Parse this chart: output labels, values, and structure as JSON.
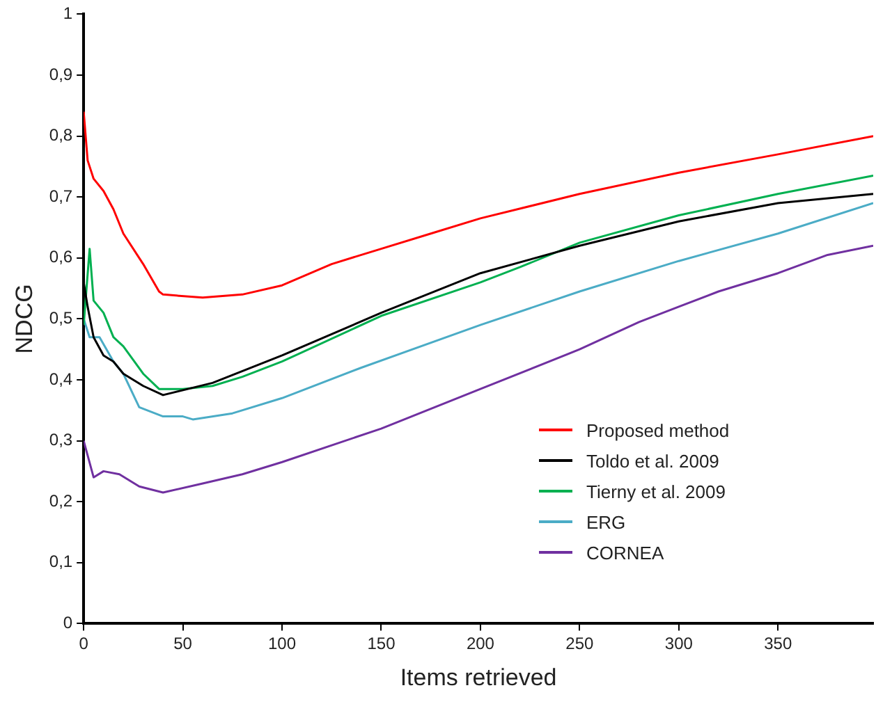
{
  "chart_data": {
    "type": "line",
    "xlabel": "Items retrieved",
    "ylabel": "NDCG",
    "xlim": [
      0,
      398
    ],
    "xticks": [
      0,
      50,
      100,
      150,
      200,
      250,
      300,
      350
    ],
    "ylim": [
      0,
      1
    ],
    "yticks": [
      0,
      {
        "value": 0.1,
        "label": "0,1"
      },
      {
        "value": 0.2,
        "label": "0,2"
      },
      {
        "value": 0.3,
        "label": "0,3"
      },
      {
        "value": 0.4,
        "label": "0,4"
      },
      {
        "value": 0.5,
        "label": "0,5"
      },
      {
        "value": 0.6,
        "label": "0,6"
      },
      {
        "value": 0.7,
        "label": "0,7"
      },
      {
        "value": 0.8,
        "label": "0,8"
      },
      {
        "value": 0.9,
        "label": "0,9"
      },
      1
    ],
    "grid": false,
    "legend": "bottom right",
    "marker": "none",
    "line_style": "solid",
    "series": [
      {
        "name": "Proposed method",
        "color": "#ff0000",
        "x": [
          0,
          2,
          5,
          10,
          15,
          20,
          30,
          38,
          40,
          60,
          80,
          100,
          125,
          150,
          175,
          200,
          250,
          300,
          350,
          398
        ],
        "values": [
          0.84,
          0.76,
          0.73,
          0.71,
          0.68,
          0.64,
          0.59,
          0.545,
          0.54,
          0.535,
          0.54,
          0.555,
          0.59,
          0.615,
          0.64,
          0.665,
          0.705,
          0.74,
          0.77,
          0.8
        ]
      },
      {
        "name": "Toldo et al. 2009",
        "color": "#000000",
        "x": [
          0,
          2,
          5,
          10,
          15,
          20,
          30,
          40,
          65,
          100,
          150,
          200,
          250,
          300,
          350,
          398
        ],
        "values": [
          0.56,
          0.52,
          0.47,
          0.44,
          0.43,
          0.41,
          0.39,
          0.375,
          0.395,
          0.44,
          0.51,
          0.575,
          0.62,
          0.66,
          0.69,
          0.705
        ]
      },
      {
        "name": "Tierny et al. 2009",
        "color": "#00b050",
        "x": [
          0,
          3,
          5,
          10,
          15,
          20,
          30,
          38,
          50,
          65,
          80,
          100,
          150,
          200,
          220,
          250,
          300,
          350,
          398
        ],
        "values": [
          0.49,
          0.615,
          0.53,
          0.51,
          0.47,
          0.455,
          0.41,
          0.385,
          0.385,
          0.39,
          0.405,
          0.43,
          0.505,
          0.56,
          0.585,
          0.625,
          0.67,
          0.705,
          0.735
        ]
      },
      {
        "name": "ERG",
        "color": "#4bacc6",
        "x": [
          0,
          3,
          8,
          15,
          20,
          28,
          40,
          50,
          55,
          75,
          100,
          140,
          200,
          250,
          300,
          350,
          398
        ],
        "values": [
          0.5,
          0.47,
          0.47,
          0.43,
          0.41,
          0.355,
          0.34,
          0.34,
          0.335,
          0.345,
          0.37,
          0.42,
          0.49,
          0.545,
          0.595,
          0.64,
          0.69
        ]
      },
      {
        "name": "CORNEA",
        "color": "#7030a0",
        "x": [
          0,
          5,
          10,
          18,
          28,
          40,
          60,
          80,
          100,
          150,
          200,
          250,
          280,
          300,
          320,
          350,
          375,
          398
        ],
        "values": [
          0.3,
          0.24,
          0.25,
          0.245,
          0.225,
          0.215,
          0.23,
          0.245,
          0.265,
          0.32,
          0.385,
          0.45,
          0.495,
          0.52,
          0.545,
          0.575,
          0.605,
          0.62
        ]
      }
    ]
  }
}
